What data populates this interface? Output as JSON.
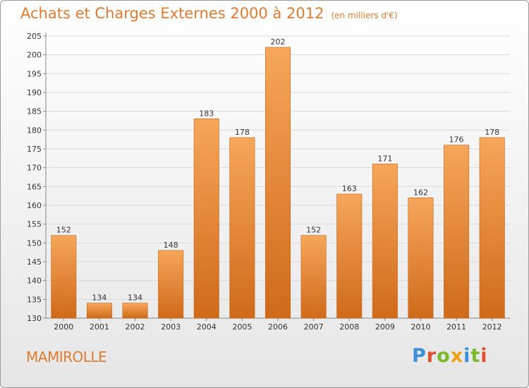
{
  "title": "Achats et Charges Externes 2000 à 2012",
  "subtitle": "(en milliers d'€)",
  "town": "MAMIROLLE",
  "logo": {
    "letters": [
      "P",
      "r",
      "o",
      "x",
      "i",
      "t",
      "i"
    ],
    "colors": [
      "#3a8fd6",
      "#e2502b",
      "#78b82a",
      "#f2a012",
      "#3a8fd6",
      "#78b82a",
      "#e2502b"
    ]
  },
  "colors": {
    "bar_top": "#f6a65a",
    "bar_bottom": "#cf6a1a",
    "title": "#e07a2e"
  },
  "chart_data": {
    "type": "bar",
    "categories": [
      "2000",
      "2001",
      "2002",
      "2003",
      "2004",
      "2005",
      "2006",
      "2007",
      "2008",
      "2009",
      "2010",
      "2011",
      "2012"
    ],
    "values": [
      152,
      134,
      134,
      148,
      183,
      178,
      202,
      152,
      163,
      171,
      162,
      176,
      178
    ],
    "ylim": [
      130,
      205
    ],
    "yticks": [
      130,
      135,
      140,
      145,
      150,
      155,
      160,
      165,
      170,
      175,
      180,
      185,
      190,
      195,
      200,
      205
    ],
    "grid": true,
    "data_labels": true
  }
}
